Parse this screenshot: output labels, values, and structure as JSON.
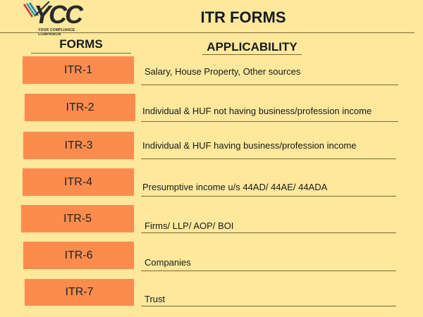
{
  "logo": {
    "text": "YCC",
    "tagline": "YOUR COMPLIANCE COMPANION"
  },
  "title": "ITR FORMS",
  "headers": {
    "forms": "FORMS",
    "applicability": "APPLICABILITY"
  },
  "colors": {
    "background": "#fde89c",
    "form_box": "#fb8c4e",
    "text": "#1a1a1a"
  },
  "rows": [
    {
      "form": "ITR-1",
      "applicability": "Salary, House Property, Other sources"
    },
    {
      "form": "ITR-2",
      "applicability": "Individual & HUF not having business/profession income"
    },
    {
      "form": "ITR-3",
      "applicability": "Individual & HUF having business/profession income"
    },
    {
      "form": "ITR-4",
      "applicability": "Presumptive income u/s 44AD/ 44AE/ 44ADA"
    },
    {
      "form": "ITR-5",
      "applicability": "Firms/ LLP/ AOP/ BOI"
    },
    {
      "form": "ITR-6",
      "applicability": "Companies"
    },
    {
      "form": "ITR-7",
      "applicability": "Trust"
    }
  ]
}
